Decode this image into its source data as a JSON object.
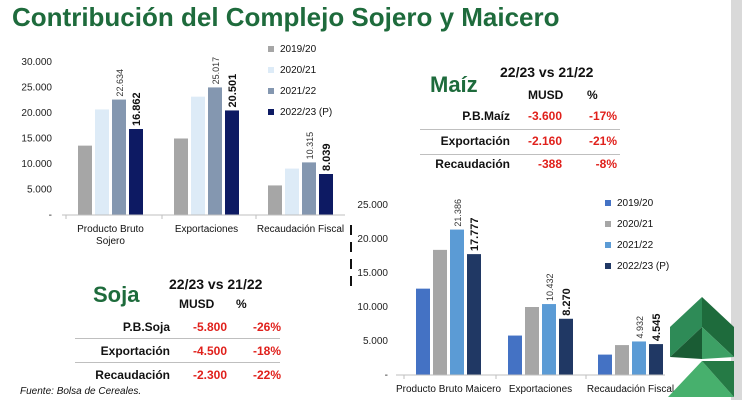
{
  "title": "Contribución del Complejo Sojero y Maicero",
  "source": "Fuente: Bolsa de Cereales.",
  "chart_data": [
    {
      "id": "soja",
      "type": "bar",
      "categories": [
        "Producto Bruto Sojero",
        "Exportaciones",
        "Recaudación Fiscal"
      ],
      "category_lines": [
        [
          "Producto Bruto",
          "Sojero"
        ],
        [
          "Exportaciones"
        ],
        [
          "Recaudación Fiscal"
        ]
      ],
      "series": [
        {
          "name": "2019/20",
          "color": "#a6a6a6",
          "values": [
            13.6,
            15.0,
            5.8
          ]
        },
        {
          "name": "2020/21",
          "color": "#ddebf7",
          "values": [
            20.7,
            23.2,
            9.1
          ]
        },
        {
          "name": "2021/22",
          "color": "#8497b0",
          "values": [
            22.634,
            25.017,
            10.315
          ]
        },
        {
          "name": "2022/23 (P)",
          "color": "#0d1a63",
          "values": [
            16.862,
            20.501,
            8.039
          ]
        }
      ],
      "data_labels": [
        {
          "series": 2,
          "labels": [
            "22.634",
            "25.017",
            "10.315"
          ],
          "bold": false
        },
        {
          "series": 3,
          "labels": [
            "16.862",
            "20.501",
            "8.039"
          ],
          "bold": true
        }
      ],
      "yticks": [
        "-",
        "5.000",
        "10.000",
        "15.000",
        "20.000",
        "25.000",
        "30.000"
      ],
      "ylim": [
        0,
        30
      ],
      "legend_position": "top-right"
    },
    {
      "id": "maiz",
      "type": "bar",
      "categories": [
        "Producto Bruto Maicero",
        "Exportaciones",
        "Recaudación Fiscal"
      ],
      "category_lines": [
        [
          "Producto Bruto Maicero"
        ],
        [
          "Exportaciones"
        ],
        [
          "Recaudación Fiscal"
        ]
      ],
      "series": [
        {
          "name": "2019/20",
          "color": "#4472c4",
          "values": [
            12.7,
            5.8,
            3.0
          ]
        },
        {
          "name": "2020/21",
          "color": "#a6a6a6",
          "values": [
            18.4,
            10.0,
            4.4
          ]
        },
        {
          "name": "2021/22",
          "color": "#5b9bd5",
          "values": [
            21.386,
            10.432,
            4.932
          ]
        },
        {
          "name": "2022/23 (P)",
          "color": "#203864",
          "values": [
            17.777,
            8.27,
            4.545
          ]
        }
      ],
      "data_labels": [
        {
          "series": 2,
          "labels": [
            "21.386",
            "10.432",
            "4.932"
          ],
          "bold": false
        },
        {
          "series": 3,
          "labels": [
            "17.777",
            "8.270",
            "4.545"
          ],
          "bold": true
        }
      ],
      "yticks": [
        "-",
        "5.000",
        "10.000",
        "15.000",
        "20.000",
        "25.000"
      ],
      "ylim": [
        0,
        25
      ],
      "legend_position": "top-right"
    }
  ],
  "maiz_table": {
    "name": "Maíz",
    "period": "22/23 vs 21/22",
    "col1": "MUSD",
    "col2": "%",
    "rows": [
      {
        "label": "P.B.Maíz",
        "musd": "-3.600",
        "pct": "-17%"
      },
      {
        "label": "Exportación",
        "musd": "-2.160",
        "pct": "-21%"
      },
      {
        "label": "Recaudación",
        "musd": "-388",
        "pct": "-8%"
      }
    ]
  },
  "soja_table": {
    "name": "Soja",
    "period": "22/23 vs 21/22",
    "col1": "MUSD",
    "col2": "%",
    "rows": [
      {
        "label": "P.B.Soja",
        "musd": "-5.800",
        "pct": "-26%"
      },
      {
        "label": "Exportación",
        "musd": "-4.500",
        "pct": "-18%"
      },
      {
        "label": "Recaudación",
        "musd": "-2.300",
        "pct": "-22%"
      }
    ]
  },
  "colors": {
    "title_green": "#1e6b3c",
    "negative_red": "#e0201b"
  }
}
